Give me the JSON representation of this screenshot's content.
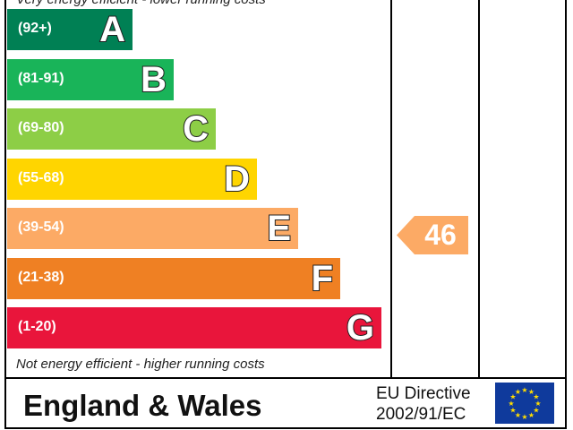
{
  "chart_data": {
    "type": "bar",
    "top_caption": "Very energy efficient - lower running costs",
    "bottom_caption": "Not energy efficient - higher running costs",
    "categories": [
      "A",
      "B",
      "C",
      "D",
      "E",
      "F",
      "G"
    ],
    "bands": [
      {
        "letter": "A",
        "range": "(92+)",
        "color": "#008054"
      },
      {
        "letter": "B",
        "range": "(81-91)",
        "color": "#19b459"
      },
      {
        "letter": "C",
        "range": "(69-80)",
        "color": "#8dce46"
      },
      {
        "letter": "D",
        "range": "(55-68)",
        "color": "#ffd500"
      },
      {
        "letter": "E",
        "range": "(39-54)",
        "color": "#fcaa65"
      },
      {
        "letter": "F",
        "range": "(21-38)",
        "color": "#ef8023"
      },
      {
        "letter": "G",
        "range": "(1-20)",
        "color": "#e9153b"
      }
    ],
    "current_rating": {
      "value": 46,
      "band": "E",
      "color": "#fcaa65"
    },
    "potential_rating": null
  },
  "footer": {
    "region": "England & Wales",
    "directive_line1": "EU Directive",
    "directive_line2": "2002/91/EC",
    "flag_icon": "eu-flag-icon"
  }
}
